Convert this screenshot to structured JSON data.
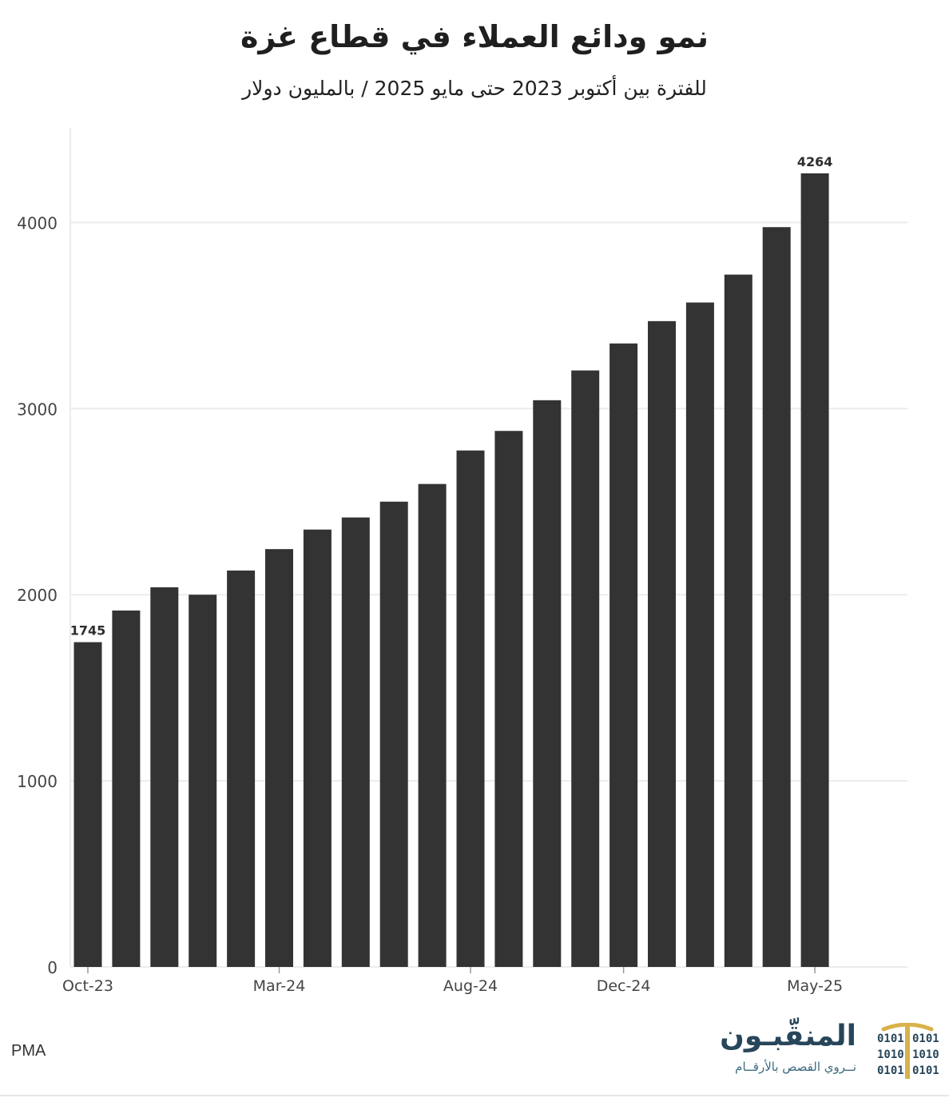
{
  "title": "نمو ودائع العملاء في قطاع غزة",
  "subtitle": "للفترة بين أكتوبر 2023 حتى مايو 2025 / بالمليون دولار",
  "source": "PMA",
  "logo": {
    "name": "المنقّبـون",
    "tagline": "نــروي القصص بالأرقــام",
    "binary_rows": [
      "0101",
      "1010",
      "0101"
    ],
    "color_dark": "#27465b",
    "color_accent": "#d8b24a"
  },
  "chart_data": {
    "type": "bar",
    "bar_color": "#333333",
    "categories": [
      "Oct-23",
      "Nov-23",
      "Dec-23",
      "Jan-24",
      "Feb-24",
      "Mar-24",
      "Apr-24",
      "May-24",
      "Jun-24",
      "Jul-24",
      "Aug-24",
      "Sep-24",
      "Oct-24",
      "Nov-24",
      "Dec-24",
      "Jan-25",
      "Feb-25",
      "Mar-25",
      "Apr-25",
      "May-25"
    ],
    "values": [
      1745,
      1915,
      2040,
      2000,
      2130,
      2245,
      2350,
      2415,
      2500,
      2595,
      2775,
      2880,
      3045,
      3205,
      3350,
      3470,
      3570,
      3720,
      3975,
      4264
    ],
    "value_labels": [
      "1745",
      "",
      "",
      "",
      "",
      "",
      "",
      "",
      "",
      "",
      "",
      "",
      "",
      "",
      "",
      "",
      "",
      "",
      "",
      "4264"
    ],
    "x_tick_labels": [
      "Oct-23",
      "",
      "",
      "",
      "",
      "Mar-24",
      "",
      "",
      "",
      "",
      "Aug-24",
      "",
      "",
      "",
      "Dec-24",
      "",
      "",
      "",
      "",
      "May-25"
    ],
    "y_ticks": [
      0,
      1000,
      2000,
      3000,
      4000
    ],
    "ylim": [
      0,
      4500
    ],
    "grid": true,
    "xlabel": "",
    "ylabel": ""
  }
}
